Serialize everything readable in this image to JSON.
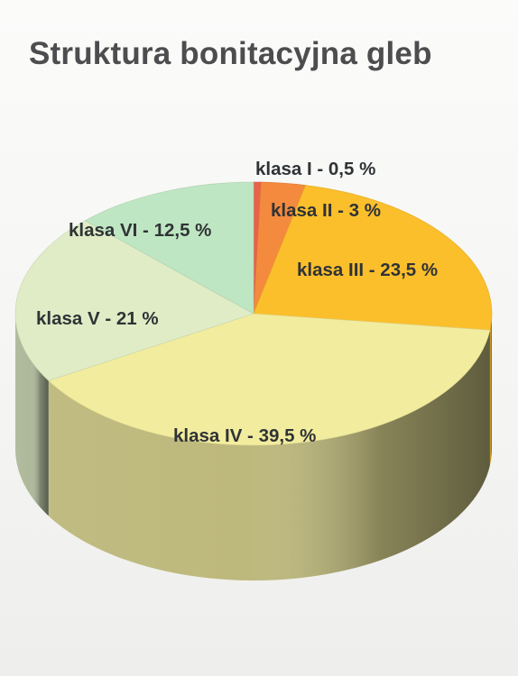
{
  "title": "Struktura bonitacyjna gleb",
  "chart_data": {
    "type": "pie",
    "title": "Struktura bonitacyjna gleb",
    "slices": [
      {
        "label": "klasa I - 0,5 %",
        "value": 0.5,
        "color": "#e8624a"
      },
      {
        "label": "klasa II - 3 %",
        "value": 3,
        "color": "#f48a3e"
      },
      {
        "label": "klasa III - 23,5 %",
        "value": 23.5,
        "color": "#fbbf2c"
      },
      {
        "label": "klasa IV - 39,5 %",
        "value": 39.5,
        "color": "#f2ec9e"
      },
      {
        "label": "klasa V - 21 %",
        "value": 21,
        "color": "#dfecc6"
      },
      {
        "label": "klasa VI - 12,5 %",
        "value": 12.5,
        "color": "#bfe6c2"
      }
    ]
  }
}
